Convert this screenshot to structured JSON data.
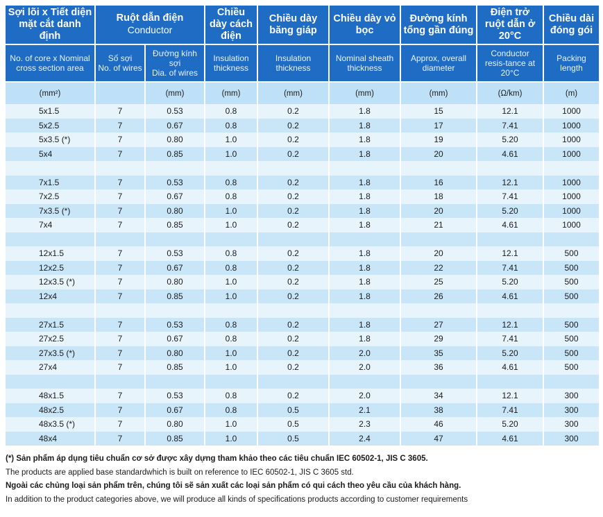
{
  "headers": [
    {
      "vi": "Sợi lõi x Tiết diện mặt cắt danh định",
      "en": "No. of core  x Nominal cross section area"
    },
    {
      "vi": "Ruột dẫn điện",
      "vi_sub": "Conductor",
      "sub": [
        {
          "vi": "Số sợi",
          "en": "No. of wires"
        },
        {
          "vi": "Đường kính sợi",
          "en": "Dia. of wires"
        }
      ]
    },
    {
      "vi": "Chiều dày cách điện",
      "en": "Insulation thickness"
    },
    {
      "vi": "Chiều dày băng giáp",
      "en": "Insulation thickness"
    },
    {
      "vi": "Chiều dày vỏ bọc",
      "en": "Nominal sheath thickness"
    },
    {
      "vi": "Đường kính tổng gần đúng",
      "en": "Approx, overall diameter"
    },
    {
      "vi": "Điện trở ruột dẫn ở 20°C",
      "en": "Conductor resis-tance at 20°C"
    },
    {
      "vi": "Chiều dài đóng gói",
      "en": "Packing length"
    }
  ],
  "units": [
    "(mm²)",
    "",
    "(mm)",
    "(mm)",
    "(mm)",
    "(mm)",
    "(mm)",
    "(Ω/km)",
    "(m)"
  ],
  "groups": [
    [
      [
        "5x1.5",
        "7",
        "0.53",
        "0.8",
        "0.2",
        "1.8",
        "15",
        "12.1",
        "1000"
      ],
      [
        "5x2.5",
        "7",
        "0.67",
        "0.8",
        "0.2",
        "1.8",
        "17",
        "7.41",
        "1000"
      ],
      [
        "5x3.5 (*)",
        "7",
        "0.80",
        "1.0",
        "0.2",
        "1.8",
        "19",
        "5.20",
        "1000"
      ],
      [
        "5x4",
        "7",
        "0.85",
        "1.0",
        "0.2",
        "1.8",
        "20",
        "4.61",
        "1000"
      ]
    ],
    [
      [
        "7x1.5",
        "7",
        "0.53",
        "0.8",
        "0.2",
        "1.8",
        "16",
        "12.1",
        "1000"
      ],
      [
        "7x2.5",
        "7",
        "0.67",
        "0.8",
        "0.2",
        "1.8",
        "18",
        "7.41",
        "1000"
      ],
      [
        "7x3.5 (*)",
        "7",
        "0.80",
        "1.0",
        "0.2",
        "1.8",
        "20",
        "5.20",
        "1000"
      ],
      [
        "7x4",
        "7",
        "0.85",
        "1.0",
        "0.2",
        "1.8",
        "21",
        "4.61",
        "1000"
      ]
    ],
    [
      [
        "12x1.5",
        "7",
        "0.53",
        "0.8",
        "0.2",
        "1.8",
        "20",
        "12.1",
        "500"
      ],
      [
        "12x2.5",
        "7",
        "0.67",
        "0.8",
        "0.2",
        "1.8",
        "22",
        "7.41",
        "500"
      ],
      [
        "12x3.5 (*)",
        "7",
        "0.80",
        "1.0",
        "0.2",
        "1.8",
        "25",
        "5.20",
        "500"
      ],
      [
        "12x4",
        "7",
        "0.85",
        "1.0",
        "0.2",
        "1.8",
        "26",
        "4.61",
        "500"
      ]
    ],
    [
      [
        "27x1.5",
        "7",
        "0.53",
        "0.8",
        "0.2",
        "1.8",
        "27",
        "12.1",
        "500"
      ],
      [
        "27x2.5",
        "7",
        "0.67",
        "0.8",
        "0.2",
        "1.8",
        "29",
        "7.41",
        "500"
      ],
      [
        "27x3.5 (*)",
        "7",
        "0.80",
        "1.0",
        "0.2",
        "2.0",
        "35",
        "5.20",
        "500"
      ],
      [
        "27x4",
        "7",
        "0.85",
        "1.0",
        "0.2",
        "2.0",
        "36",
        "4.61",
        "500"
      ]
    ],
    [
      [
        "48x1.5",
        "7",
        "0.53",
        "0.8",
        "0.2",
        "2.0",
        "34",
        "12.1",
        "300"
      ],
      [
        "48x2.5",
        "7",
        "0.67",
        "0.8",
        "0.5",
        "2.1",
        "38",
        "7.41",
        "300"
      ],
      [
        "48x3.5 (*)",
        "7",
        "0.80",
        "1.0",
        "0.5",
        "2.3",
        "46",
        "5.20",
        "300"
      ],
      [
        "48x4",
        "7",
        "0.85",
        "1.0",
        "0.5",
        "2.4",
        "47",
        "4.61",
        "300"
      ]
    ]
  ],
  "notes": [
    {
      "text": "(*) Sản phẩm áp dụng tiêu chuẩn cơ sở được xây dựng tham khảo theo các tiêu chuẩn IEC 60502-1, JIS C 3605.",
      "bold": true
    },
    {
      "text": "The products are applied base standardwhich is built on reference to IEC 60502-1, JIS C 3605 std.",
      "bold": false
    },
    {
      "text": "Ngoài các chủng loại sản phẩm trên, chúng tôi sẽ sản xuất các loại sản phẩm có qui cách theo yêu cầu của khách hàng.",
      "bold": true
    },
    {
      "text": "In addition to the product categories above, we will produce all kinds of specifications products according to customer requirements",
      "bold": false
    }
  ],
  "colors": {
    "header": "#1f6cc4",
    "units_row": "#bfe1f7",
    "row_light": "#e8f4fc",
    "row_dark": "#c9e6f8"
  }
}
